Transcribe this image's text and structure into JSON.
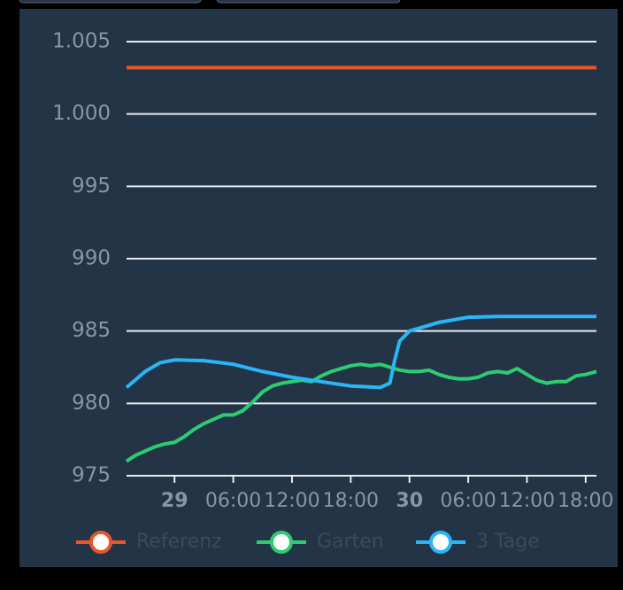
{
  "chart_data": {
    "type": "line",
    "xlim": [
      -4.9,
      43.1
    ],
    "xticks": [
      {
        "value": 0,
        "label": "29"
      },
      {
        "value": 6,
        "label": "06:00"
      },
      {
        "value": 12,
        "label": "12:00"
      },
      {
        "value": 18,
        "label": "18:00"
      },
      {
        "value": 24,
        "label": "30"
      },
      {
        "value": 30,
        "label": "06:00"
      },
      {
        "value": 36,
        "label": "12:00"
      },
      {
        "value": 42,
        "label": "18:00"
      }
    ],
    "ylim": [
      975,
      1005
    ],
    "yticks": [
      975,
      980,
      985,
      990,
      995,
      {
        "value": 1000,
        "label": "1.000"
      },
      {
        "value": 1005,
        "label": "1.005"
      }
    ],
    "grid": true,
    "series": [
      {
        "name": "Referenz",
        "color": "#e8572a",
        "x": [
          -4.9,
          43.1
        ],
        "values": [
          1003.2,
          1003.2
        ]
      },
      {
        "name": "Garten",
        "color": "#2ecc71",
        "x": [
          -4.9,
          -4,
          -3,
          -2,
          -1,
          0,
          1,
          2,
          3,
          4,
          5,
          6,
          7,
          8,
          9,
          10,
          11,
          12,
          13,
          14,
          15,
          16,
          17,
          18,
          19,
          20,
          21,
          22,
          23,
          24,
          25,
          26,
          27,
          28,
          29,
          30,
          31,
          32,
          33,
          34,
          35,
          36,
          37,
          38,
          39,
          40,
          41,
          42,
          43.1
        ],
        "values": [
          976.0,
          976.4,
          976.7,
          977.0,
          977.2,
          977.3,
          977.7,
          978.2,
          978.6,
          978.9,
          979.2,
          979.2,
          979.5,
          980.1,
          980.8,
          981.2,
          981.4,
          981.5,
          981.6,
          981.5,
          981.9,
          982.2,
          982.4,
          982.6,
          982.7,
          982.6,
          982.7,
          982.5,
          982.3,
          982.2,
          982.2,
          982.3,
          982.0,
          981.8,
          981.7,
          981.7,
          981.8,
          982.1,
          982.2,
          982.1,
          982.4,
          982.0,
          981.6,
          981.4,
          981.5,
          981.5,
          981.9,
          982.0,
          982.2
        ]
      },
      {
        "name": "3 Tage",
        "color": "#29b6f6",
        "x": [
          -4.9,
          -3,
          -1.5,
          0,
          3,
          6,
          9,
          12,
          15,
          18,
          21,
          22,
          22.5,
          23,
          24,
          27,
          30,
          33,
          36,
          43.1
        ],
        "values": [
          981.1,
          982.2,
          982.8,
          983.0,
          982.95,
          982.7,
          982.2,
          981.8,
          981.5,
          981.2,
          981.1,
          981.4,
          983.0,
          984.3,
          985.0,
          985.6,
          985.95,
          986.0,
          986.0,
          986.0
        ]
      }
    ]
  }
}
